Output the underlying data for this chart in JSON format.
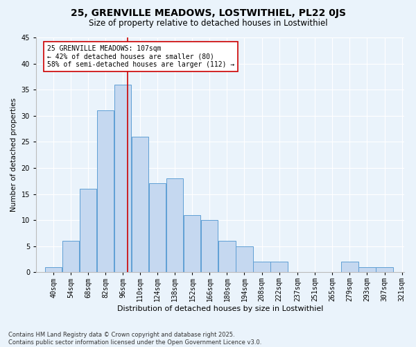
{
  "title_line1": "25, GRENVILLE MEADOWS, LOSTWITHIEL, PL22 0JS",
  "title_line2": "Size of property relative to detached houses in Lostwithiel",
  "xlabel": "Distribution of detached houses by size in Lostwithiel",
  "ylabel": "Number of detached properties",
  "bin_labels": [
    "40sqm",
    "54sqm",
    "68sqm",
    "82sqm",
    "96sqm",
    "110sqm",
    "124sqm",
    "138sqm",
    "152sqm",
    "166sqm",
    "180sqm",
    "194sqm",
    "208sqm",
    "222sqm",
    "237sqm",
    "251sqm",
    "265sqm",
    "279sqm",
    "293sqm",
    "307sqm",
    "321sqm"
  ],
  "bin_edges": [
    40,
    54,
    68,
    82,
    96,
    110,
    124,
    138,
    152,
    166,
    180,
    194,
    208,
    222,
    237,
    251,
    265,
    279,
    293,
    307,
    321
  ],
  "bar_heights": [
    1,
    6,
    16,
    31,
    36,
    26,
    17,
    18,
    11,
    10,
    6,
    5,
    2,
    2,
    0,
    0,
    0,
    2,
    1,
    1
  ],
  "bar_color": "#c5d8f0",
  "bar_edge_color": "#5f9fd4",
  "property_size": 107,
  "vline_color": "#cc0000",
  "annotation_text": "25 GRENVILLE MEADOWS: 107sqm\n← 42% of detached houses are smaller (80)\n58% of semi-detached houses are larger (112) →",
  "annotation_box_color": "#ffffff",
  "annotation_box_edge": "#cc0000",
  "background_color": "#eaf3fb",
  "plot_bg_color": "#eaf3fb",
  "footnote": "Contains HM Land Registry data © Crown copyright and database right 2025.\nContains public sector information licensed under the Open Government Licence v3.0.",
  "ylim": [
    0,
    45
  ],
  "yticks": [
    0,
    5,
    10,
    15,
    20,
    25,
    30,
    35,
    40,
    45
  ],
  "title1_fontsize": 10,
  "title2_fontsize": 8.5,
  "xlabel_fontsize": 8,
  "ylabel_fontsize": 7.5,
  "tick_fontsize": 7,
  "annot_fontsize": 7,
  "footnote_fontsize": 6
}
